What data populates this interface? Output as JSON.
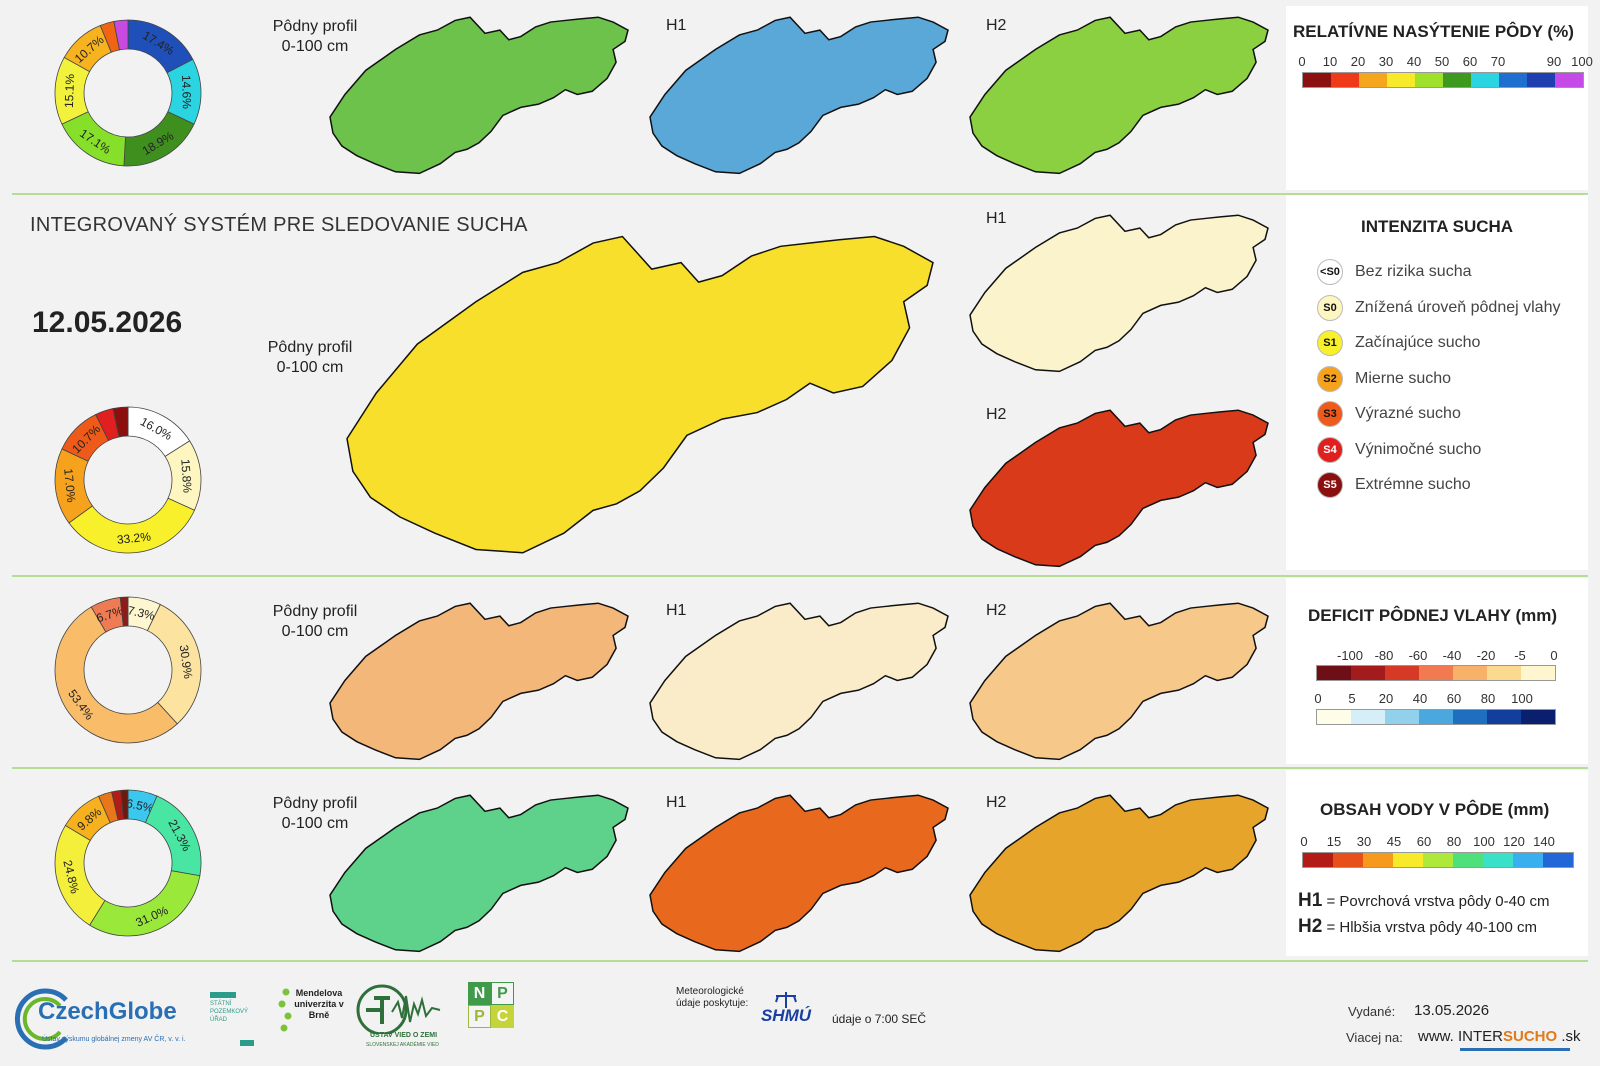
{
  "app": {
    "title": "INTEGROVANÝ SYSTÉM PRE SLEDOVANIE SUCHA",
    "date": "12.05.2026"
  },
  "labels": {
    "profile_line1": "Pôdny profil",
    "profile_line2": "0-100 cm",
    "h1": "H1",
    "h2": "H2"
  },
  "donuts": {
    "saturation": [
      {
        "value": 17.4,
        "label": "17.4%",
        "color": "#1f4fb8"
      },
      {
        "value": 14.6,
        "label": "14.6%",
        "color": "#2ad4e0"
      },
      {
        "value": 18.9,
        "label": "18.9%",
        "color": "#3f8f1f"
      },
      {
        "value": 17.1,
        "label": "17.1%",
        "color": "#86e02a"
      },
      {
        "value": 15.1,
        "label": "15.1%",
        "color": "#f2f23c"
      },
      {
        "value": 10.7,
        "label": "10.7%",
        "color": "#f6b31f"
      },
      {
        "value": 3.1,
        "label": "",
        "color": "#f06414"
      },
      {
        "value": 3.1,
        "label": "",
        "color": "#c84ae0"
      }
    ],
    "intensity": [
      {
        "value": 16.0,
        "label": "16.0%",
        "color": "#ffffff"
      },
      {
        "value": 15.8,
        "label": "15.8%",
        "color": "#fdf6c0"
      },
      {
        "value": 33.2,
        "label": "33.2%",
        "color": "#f8f02a"
      },
      {
        "value": 17.0,
        "label": "17.0%",
        "color": "#f6a21d"
      },
      {
        "value": 10.7,
        "label": "10.7%",
        "color": "#ee5a1a"
      },
      {
        "value": 4.0,
        "label": "",
        "color": "#e01f1f"
      },
      {
        "value": 3.3,
        "label": "",
        "color": "#8c0f10"
      }
    ],
    "deficit": [
      {
        "value": 7.3,
        "label": "7.3%",
        "color": "#fdf6cf"
      },
      {
        "value": 30.9,
        "label": "30.9%",
        "color": "#fde3a0"
      },
      {
        "value": 53.4,
        "label": "53.4%",
        "color": "#f9bd6a"
      },
      {
        "value": 6.7,
        "label": "6.7%",
        "color": "#ef7b54"
      },
      {
        "value": 1.7,
        "label": "",
        "color": "#8a1c1c"
      }
    ],
    "water": [
      {
        "value": 6.5,
        "label": "6.5%",
        "color": "#3bc8ee"
      },
      {
        "value": 21.3,
        "label": "21.3%",
        "color": "#48e6a2"
      },
      {
        "value": 31.0,
        "label": "31.0%",
        "color": "#9ae83a"
      },
      {
        "value": 24.8,
        "label": "24.8%",
        "color": "#f4ef3a"
      },
      {
        "value": 9.8,
        "label": "9.8%",
        "color": "#f7b01e"
      },
      {
        "value": 3.0,
        "label": "",
        "color": "#e8761a"
      },
      {
        "value": 2.0,
        "label": "",
        "color": "#b21b16"
      },
      {
        "value": 1.6,
        "label": "",
        "color": "#6b1a10"
      }
    ]
  },
  "maps": {
    "saturation": {
      "profile": "#6cc24a",
      "h1": "#5aa8d8",
      "h2": "#8ad040"
    },
    "intensity": {
      "profile": "#f7df2c",
      "h1": "#fbf3cb",
      "h2": "#d93a1a"
    },
    "deficit": {
      "profile": "#f4b77a",
      "h1": "#fbecc9",
      "h2": "#f6c88a"
    },
    "water": {
      "profile": "#5ed18a",
      "h1": "#e8691e",
      "h2": "#e6a52a"
    }
  },
  "legends": {
    "saturation": {
      "title": "RELATÍVNE NASÝTENIE PÔDY (%)",
      "ticks": [
        "0",
        "10",
        "20",
        "30",
        "40",
        "50",
        "60",
        "70",
        "90",
        "100"
      ],
      "colors": [
        "#8b1010",
        "#ee3a1a",
        "#f6a61d",
        "#f6ea2a",
        "#9fe02a",
        "#3e9a1f",
        "#2ad4e0",
        "#1f6fd0",
        "#1f3fb0",
        "#c64ae8"
      ]
    },
    "intensity": {
      "title": "INTENZITA SUCHA",
      "items": [
        {
          "badge": "<S0",
          "label": "Bez rizika sucha",
          "color": "#ffffff"
        },
        {
          "badge": "S0",
          "label": "Znížená úroveň pôdnej vlahy",
          "color": "#fdf6c0"
        },
        {
          "badge": "S1",
          "label": "Začínajúce sucho",
          "color": "#f8f02a"
        },
        {
          "badge": "S2",
          "label": "Mierne sucho",
          "color": "#f6a21d"
        },
        {
          "badge": "S3",
          "label": "Výrazné sucho",
          "color": "#ee5a1a"
        },
        {
          "badge": "S4",
          "label": "Výnimočné sucho",
          "color": "#e01f1f"
        },
        {
          "badge": "S5",
          "label": "Extrémne sucho",
          "color": "#8c0f10"
        }
      ]
    },
    "deficit": {
      "title": "DEFICIT PÔDNEJ VLAHY (mm)",
      "neg_ticks": [
        "-100",
        "-80",
        "-60",
        "-40",
        "-20",
        "-5",
        "0"
      ],
      "neg_colors": [
        "#6e0f17",
        "#a31b1c",
        "#d63a26",
        "#f17a50",
        "#f8b169",
        "#fbd98f",
        "#fdf6cf"
      ],
      "pos_ticks": [
        "0",
        "5",
        "20",
        "40",
        "60",
        "80",
        "100"
      ],
      "pos_colors": [
        "#fdfde8",
        "#d6eef8",
        "#92d1ec",
        "#4aa8de",
        "#1f6fc0",
        "#123f9e",
        "#0a1f6e"
      ]
    },
    "water": {
      "title": "OBSAH VODY V PÔDE (mm)",
      "ticks": [
        "0",
        "15",
        "30",
        "45",
        "60",
        "80",
        "100",
        "120",
        "140"
      ],
      "colors": [
        "#b21b16",
        "#e8501a",
        "#f69a1e",
        "#f6ea2a",
        "#aee83a",
        "#4ee07a",
        "#3ae0c8",
        "#38b0f0",
        "#2266d8"
      ]
    }
  },
  "layers": [
    {
      "code": "H1",
      "desc": "= Povrchová vrstva pôdy 0-40 cm"
    },
    {
      "code": "H2",
      "desc": "= Hlbšia vrstva pôdy 40-100 cm"
    }
  ],
  "footer": {
    "czechglobe": "CzechGlobe",
    "czechglobe_sub": "Ústav výskumu globálnej zmeny AV ČR, v. v. i.",
    "spu": "STÁTNÍ POZEMKOVÝ ÚŘAD",
    "mendel": "Mendelova univerzita v Brně",
    "uvz": "ÚSTAV VIED O ZEMI",
    "uvz_sub": "SLOVENSKEJ AKADÉMIE VIED",
    "nppc": [
      "N",
      "P",
      "P",
      "C"
    ],
    "meteo": "Meteorologické údaje poskytuje:",
    "shmu": "SHMÚ",
    "data_time": "údaje o 7:00 SEČ",
    "issued_label": "Vydané:",
    "issued_date": "13.05.2026",
    "more_label": "Viacej na:",
    "url_a": "www. INTER",
    "url_b": "SUCHO",
    "url_c": " .sk"
  }
}
